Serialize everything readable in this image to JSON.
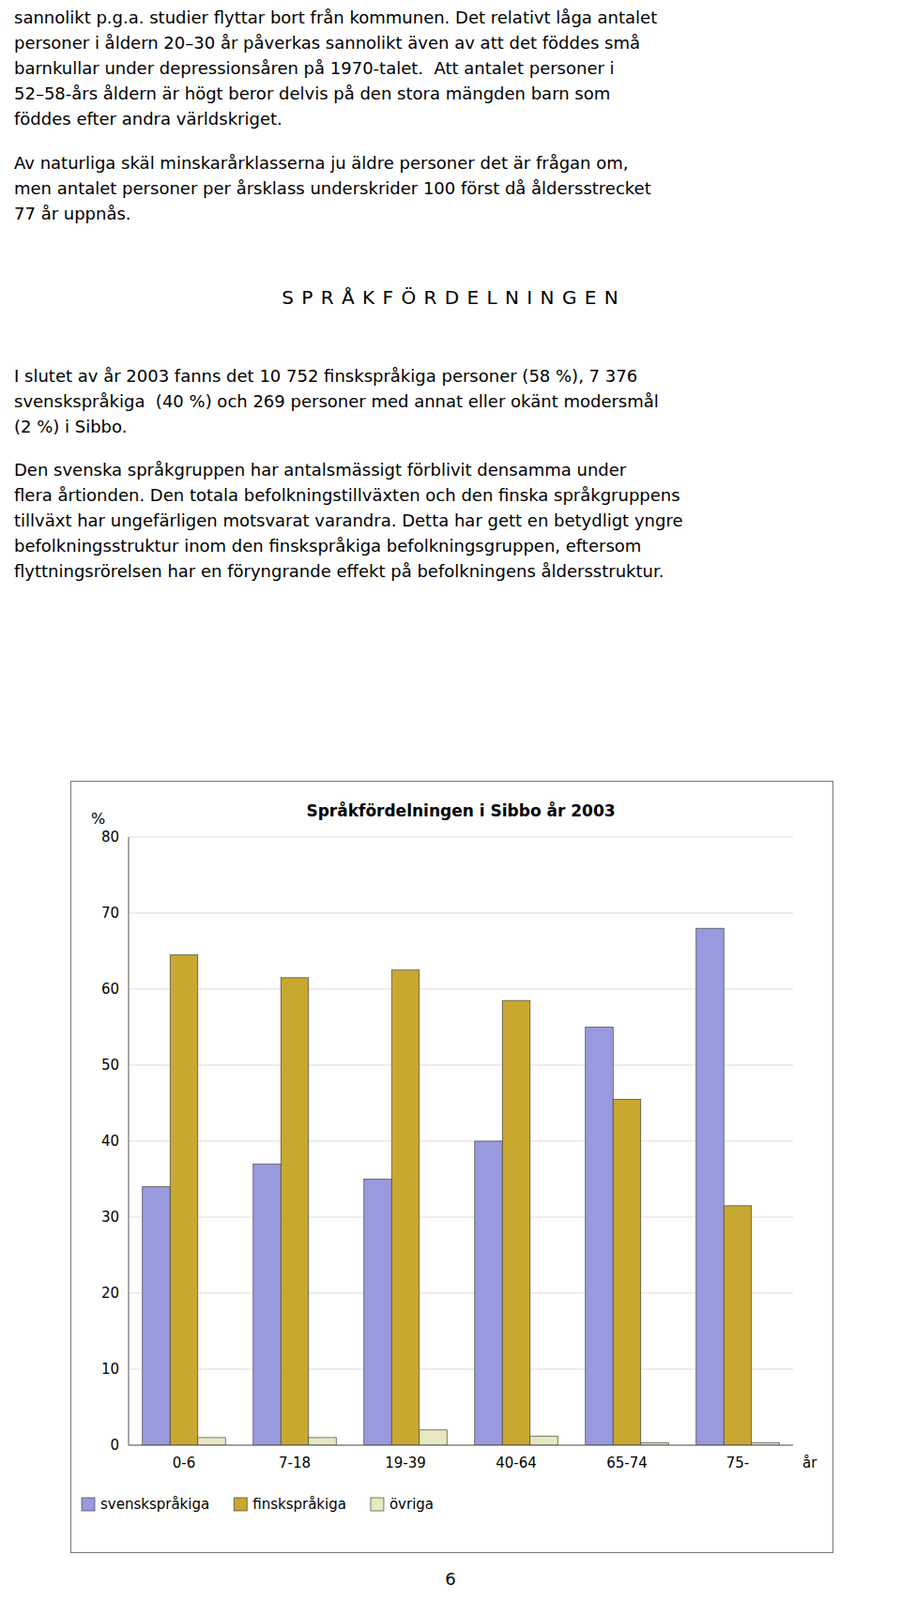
{
  "page": {
    "paragraphs": [
      [
        "sannolikt p.g.a. studier flyttar bort från kommunen. Det relativt låga antalet",
        "personer i åldern 20–30 år påverkas sannolikt även av att det föddes små",
        "barnkullar under depressionsåren på 1970-talet.  Att antalet personer i",
        "52–58-års åldern är högt beror delvis på den stora mängden barn som",
        "föddes efter andra världskriget."
      ],
      [
        "Av naturliga skäl minskarårklasserna ju äldre personer det är frågan om,",
        "men antalet personer per årsklass underskrider 100 först då ålder­sstrecket",
        "77 år uppnås."
      ],
      [
        "I slutet av år 2003 fanns det 10 752 finskspråkiga personer (58 %), 7 376",
        "svenskspråkiga  (40 %) och 269 personer med annat eller okänt modersmål",
        "(2 %) i Sibbo."
      ],
      [
        "Den svenska språkgruppen har antalsmässigt förblivit densamma under",
        "flera årtionden. Den totala befolkningstillväxten och den finska språkgruppens",
        "tillväxt har ungefärligen motsvarat varandra. Detta har gett en betydligt yngre",
        "befolkningsstruktur inom den finskspråkiga befolkningsgruppen, eftersom",
        "flyttningsrörelsen har en föryngrande effekt på befolkningens åldersstruktur."
      ]
    ],
    "heading": "S P R Å K F Ö R D E L N I N G E N",
    "page_number": "6"
  },
  "chart_data": {
    "type": "bar",
    "title": "Språkfördelningen i Sibbo år 2003",
    "ylabel": "%",
    "xlabel": "år",
    "categories": [
      "0-6",
      "7-18",
      "19-39",
      "40-64",
      "65-74",
      "75-"
    ],
    "series": [
      {
        "name": "svenskspråkiga",
        "color": "#9999dd",
        "values": [
          34,
          37,
          35,
          40,
          55,
          68
        ]
      },
      {
        "name": "finskspråkiga",
        "color": "#c8a830",
        "values": [
          64.5,
          61.5,
          62.5,
          58.5,
          45.5,
          31.5
        ]
      },
      {
        "name": "övriga",
        "color": "#e8e8c0",
        "values": [
          1,
          1,
          2,
          1.2,
          0.3,
          0.3
        ]
      }
    ],
    "ylim": [
      0,
      80
    ],
    "yticks": [
      0,
      10,
      20,
      30,
      40,
      50,
      60,
      70,
      80
    ],
    "grid": true,
    "legend": "lower left"
  }
}
